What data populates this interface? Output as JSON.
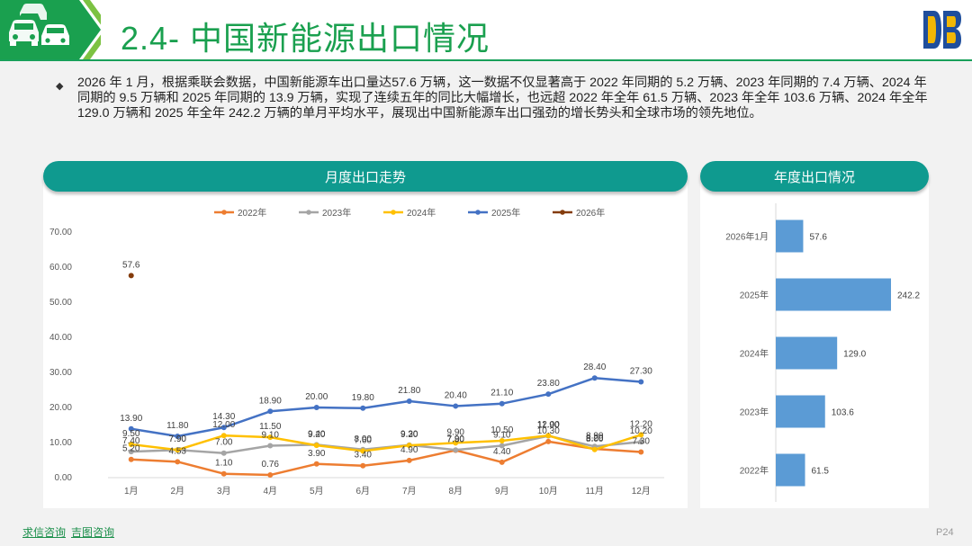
{
  "header": {
    "title": "2.4- 中国新能源出口情况"
  },
  "intro_text": "2026 年 1 月，根据乘联会数据，中国新能源车出口量达57.6 万辆，这一数据不仅显著高于 2022 年同期的 5.2 万辆、2023 年同期的 7.4 万辆、2024 年同期的 9.5 万辆和 2025 年同期的 13.9 万辆，实现了连续五年的同比大幅增长，也远超 2022 年全年 61.5 万辆、2023 年全年 103.6 万辆、2024 年全年 129.0 万辆和 2025 年全年 242.2 万辆的单月平均水平，展现出中国新能源车出口强劲的增长势头和全球市场的领先地位。",
  "sections": {
    "monthly_title": "月度出口走势",
    "annual_title": "年度出口情况"
  },
  "footer": {
    "link1": "求信咨询",
    "link2": "吉图咨询",
    "page": "P24"
  },
  "colors": {
    "brand_green": "#1aa04f",
    "teal": "#0f9a8f",
    "bar_blue": "#5b9bd5"
  },
  "chart_data": [
    {
      "type": "line",
      "categories": [
        "1月",
        "2月",
        "3月",
        "4月",
        "5月",
        "6月",
        "7月",
        "8月",
        "9月",
        "10月",
        "11月",
        "12月"
      ],
      "ylim": [
        0,
        70
      ],
      "yticks": [
        "0.00",
        "10.00",
        "20.00",
        "30.00",
        "40.00",
        "50.00",
        "60.00",
        "70.00"
      ],
      "legend_position": "top",
      "grid": false,
      "series": [
        {
          "name": "2022年",
          "color": "#ed7d31",
          "values": [
            5.2,
            4.53,
            1.1,
            0.76,
            3.9,
            3.4,
            4.9,
            7.8,
            4.4,
            10.3,
            8.2,
            7.3
          ],
          "labels": [
            "5.20",
            "4.53",
            "1.10",
            "0.76",
            "3.90",
            "3.40",
            "4.90",
            "7.80",
            "4.40",
            "10.30",
            "8.20",
            "7.30"
          ]
        },
        {
          "name": "2023年",
          "color": "#a5a5a5",
          "values": [
            7.4,
            7.9,
            7.0,
            9.1,
            9.4,
            8.0,
            9.3,
            7.9,
            9.1,
            11.9,
            8.9,
            10.2
          ],
          "labels": [
            "7.40",
            "7.90",
            "7.00",
            "9.10",
            "9.40",
            "8.00",
            "9.30",
            "7.90",
            "9.10",
            "11.90",
            "8.90",
            "10.20"
          ]
        },
        {
          "name": "2024年",
          "color": "#ffc000",
          "values": [
            9.5,
            7.9,
            12.0,
            11.5,
            9.2,
            7.6,
            9.2,
            9.9,
            10.5,
            12.0,
            8.0,
            12.2
          ],
          "labels": [
            "9.50",
            "7.90",
            "12.00",
            "11.50",
            "9.20",
            "7.60",
            "9.20",
            "9.90",
            "10.50",
            "12.00",
            "8.00",
            "12.20"
          ]
        },
        {
          "name": "2025年",
          "color": "#4472c4",
          "values": [
            13.9,
            11.8,
            14.3,
            18.9,
            20.0,
            19.8,
            21.8,
            20.4,
            21.1,
            23.8,
            28.4,
            27.3
          ],
          "labels": [
            "13.90",
            "11.80",
            "14.30",
            "18.90",
            "20.00",
            "19.80",
            "21.80",
            "20.40",
            "21.10",
            "23.80",
            "28.40",
            "27.30"
          ]
        },
        {
          "name": "2026年",
          "color": "#843c0c",
          "values": [
            57.6,
            null,
            null,
            null,
            null,
            null,
            null,
            null,
            null,
            null,
            null,
            null
          ],
          "labels": [
            "57.6"
          ]
        }
      ]
    },
    {
      "type": "bar",
      "orientation": "horizontal",
      "categories": [
        "2026年1月",
        "2025年",
        "2024年",
        "2023年",
        "2022年"
      ],
      "values": [
        57.6,
        242.2,
        129.0,
        103.6,
        61.5
      ],
      "labels": [
        "57.6",
        "242.2",
        "129.0",
        "103.6",
        "61.5"
      ],
      "color": "#5b9bd5"
    }
  ]
}
